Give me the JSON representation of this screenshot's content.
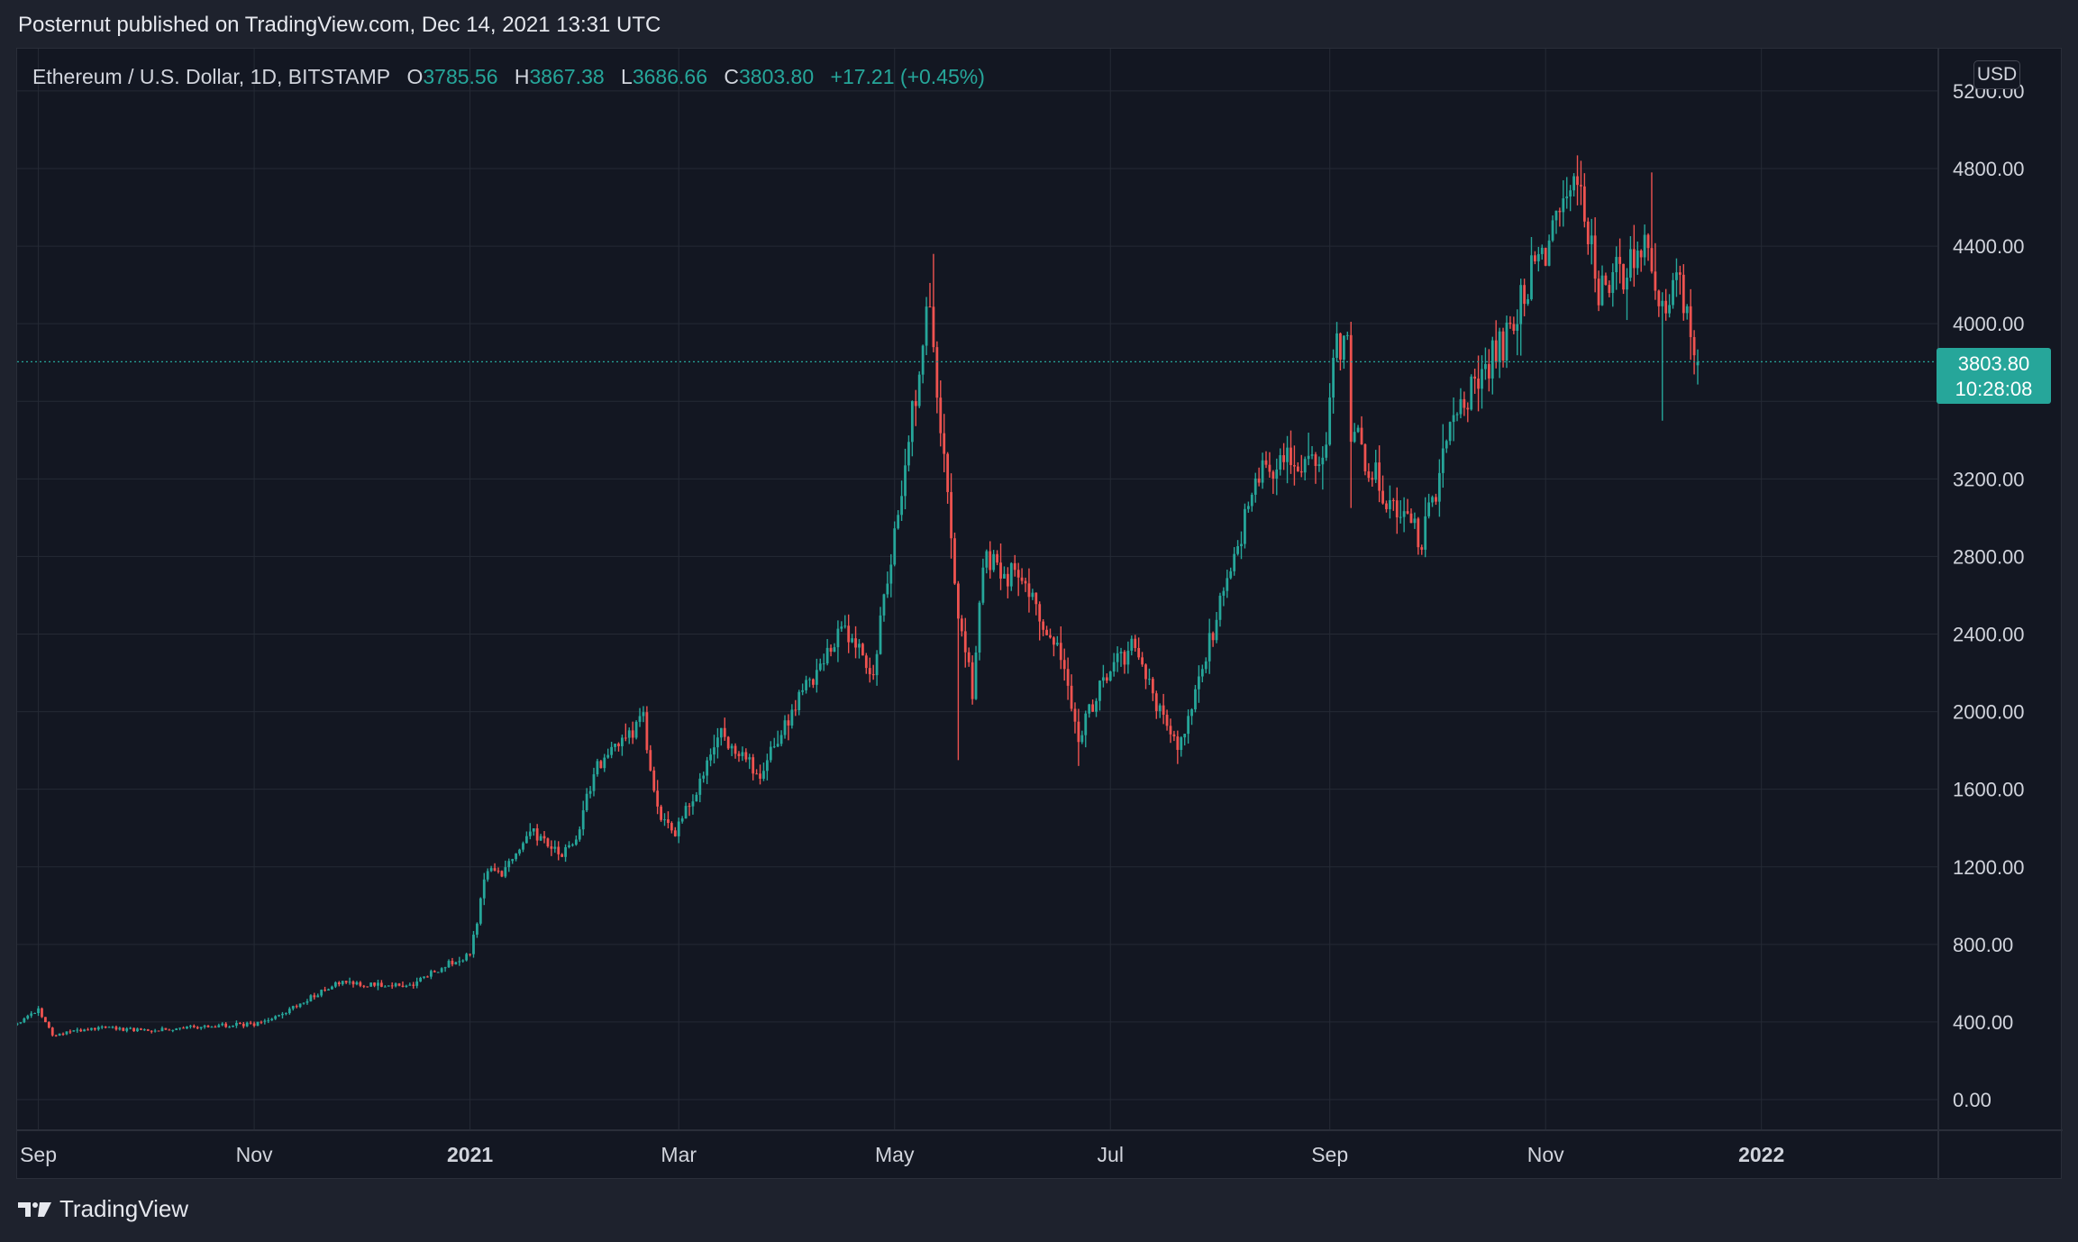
{
  "header": {
    "published_by": "Posternut published on TradingView.com, Dec 14, 2021 13:31 UTC"
  },
  "legend": {
    "symbol": "Ethereum / U.S. Dollar, 1D, BITSTAMP",
    "open_label": "O",
    "open": "3785.56",
    "high_label": "H",
    "high": "3867.38",
    "low_label": "L",
    "low": "3686.66",
    "close_label": "C",
    "close": "3803.80",
    "change": "+17.21 (+0.45%)"
  },
  "axis": {
    "currency": "USD"
  },
  "last_price": {
    "price": "3803.80",
    "countdown": "10:28:08"
  },
  "footer": {
    "brand": "TradingView"
  },
  "colors": {
    "up": "#26a69a",
    "down": "#ef5350",
    "background": "#131722",
    "frame": "#1e222d",
    "grid": "#252a35",
    "text": "#d1d4dc"
  },
  "chart_data": {
    "type": "candlestick",
    "title": "Ethereum / U.S. Dollar, 1D, BITSTAMP",
    "ylim": [
      -100,
      5400
    ],
    "y_ticks": [
      0,
      400,
      800,
      1200,
      1600,
      2000,
      2400,
      2800,
      3200,
      4000,
      4400,
      4800,
      5200
    ],
    "y_tick_labels": [
      "0.00",
      "400.00",
      "800.00",
      "1200.00",
      "1600.00",
      "2000.00",
      "2400.00",
      "2800.00",
      "3200.00",
      "4000.00",
      "4400.00",
      "4800.00",
      "5200.00"
    ],
    "x_range": [
      "2020-08-26",
      "2022-02-20"
    ],
    "x_ticks": [
      {
        "date": "2020-09-01",
        "label": "Sep",
        "bold": false
      },
      {
        "date": "2020-11-01",
        "label": "Nov",
        "bold": false
      },
      {
        "date": "2021-01-01",
        "label": "2021",
        "bold": true
      },
      {
        "date": "2021-03-01",
        "label": "Mar",
        "bold": false
      },
      {
        "date": "2021-05-01",
        "label": "May",
        "bold": false
      },
      {
        "date": "2021-07-01",
        "label": "Jul",
        "bold": false
      },
      {
        "date": "2021-09-01",
        "label": "Sep",
        "bold": false
      },
      {
        "date": "2021-11-01",
        "label": "Nov",
        "bold": false
      },
      {
        "date": "2022-01-01",
        "label": "2022",
        "bold": true
      }
    ],
    "start_date": "2020-08-26",
    "close_path": [
      [
        "2020-08-26",
        385
      ],
      [
        "2020-09-01",
        470
      ],
      [
        "2020-09-05",
        335
      ],
      [
        "2020-09-20",
        370
      ],
      [
        "2020-10-01",
        355
      ],
      [
        "2020-10-20",
        380
      ],
      [
        "2020-11-01",
        390
      ],
      [
        "2020-11-10",
        450
      ],
      [
        "2020-11-24",
        600
      ],
      [
        "2020-12-05",
        590
      ],
      [
        "2020-12-15",
        590
      ],
      [
        "2020-12-27",
        710
      ],
      [
        "2021-01-01",
        740
      ],
      [
        "2021-01-06",
        1200
      ],
      [
        "2021-01-10",
        1170
      ],
      [
        "2021-01-19",
        1380
      ],
      [
        "2021-01-27",
        1250
      ],
      [
        "2021-01-31",
        1340
      ],
      [
        "2021-02-05",
        1700
      ],
      [
        "2021-02-19",
        1960
      ],
      [
        "2021-02-23",
        1500
      ],
      [
        "2021-02-28",
        1380
      ],
      [
        "2021-03-05",
        1560
      ],
      [
        "2021-03-13",
        1870
      ],
      [
        "2021-03-24",
        1680
      ],
      [
        "2021-04-05",
        2100
      ],
      [
        "2021-04-16",
        2430
      ],
      [
        "2021-04-25",
        2200
      ],
      [
        "2021-05-04",
        3300
      ],
      [
        "2021-05-11",
        4150
      ],
      [
        "2021-05-12",
        3850
      ],
      [
        "2021-05-19",
        2500
      ],
      [
        "2021-05-23",
        2100
      ],
      [
        "2021-05-26",
        2800
      ],
      [
        "2021-06-03",
        2700
      ],
      [
        "2021-06-16",
        2380
      ],
      [
        "2021-06-22",
        1880
      ],
      [
        "2021-06-30",
        2200
      ],
      [
        "2021-07-07",
        2320
      ],
      [
        "2021-07-20",
        1800
      ],
      [
        "2021-08-05",
        2800
      ],
      [
        "2021-08-13",
        3280
      ],
      [
        "2021-08-30",
        3300
      ],
      [
        "2021-09-03",
        3900
      ],
      [
        "2021-09-06",
        3880
      ],
      [
        "2021-09-07",
        3450
      ],
      [
        "2021-09-20",
        3000
      ],
      [
        "2021-09-27",
        2900
      ],
      [
        "2021-10-07",
        3550
      ],
      [
        "2021-10-20",
        3900
      ],
      [
        "2021-10-29",
        4300
      ],
      [
        "2021-11-05",
        4500
      ],
      [
        "2021-11-10",
        4700
      ],
      [
        "2021-11-16",
        4200
      ],
      [
        "2021-11-25",
        4300
      ],
      [
        "2021-11-29",
        4400
      ],
      [
        "2021-12-04",
        4100
      ],
      [
        "2021-12-08",
        4300
      ],
      [
        "2021-12-14",
        3803.8
      ]
    ],
    "extremes": [
      {
        "date": "2021-05-12",
        "high": 4360
      },
      {
        "date": "2021-05-19",
        "low": 1750
      },
      {
        "date": "2021-06-22",
        "low": 1720
      },
      {
        "date": "2021-07-20",
        "low": 1730
      },
      {
        "date": "2021-09-07",
        "low": 3050
      },
      {
        "date": "2021-11-10",
        "high": 4868
      },
      {
        "date": "2021-12-01",
        "high": 4780
      },
      {
        "date": "2021-12-04",
        "low": 3500
      }
    ],
    "last_price": 3803.8
  }
}
